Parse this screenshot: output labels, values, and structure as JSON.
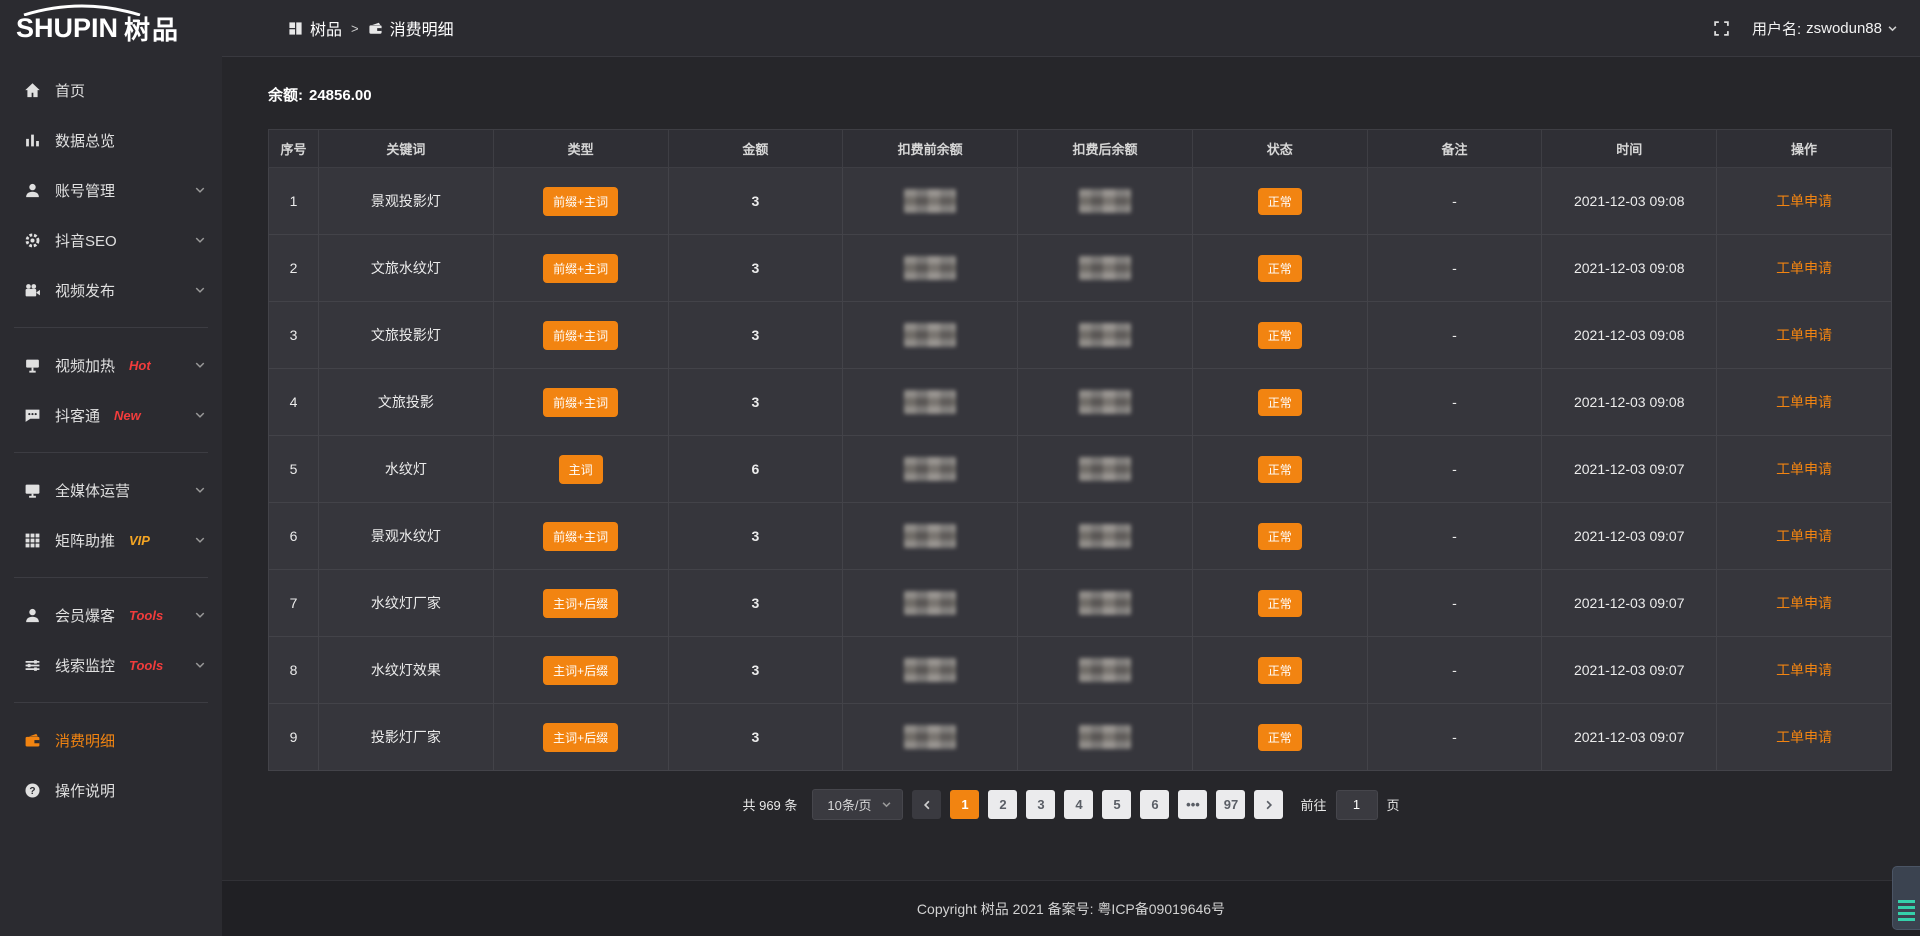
{
  "logo": {
    "text_en": "SHUPIN",
    "text_cn": "树品"
  },
  "header": {
    "breadcrumb": [
      {
        "label": "树品"
      },
      {
        "label": "消费明细"
      }
    ],
    "breadcrumb_separator": ">",
    "username_label": "用户名:",
    "username": "zswodun88"
  },
  "sidebar": {
    "items": [
      {
        "label": "首页"
      },
      {
        "label": "数据总览"
      },
      {
        "label": "账号管理"
      },
      {
        "label": "抖音SEO"
      },
      {
        "label": "视频发布"
      },
      {
        "label": "视频加热",
        "badge": "Hot"
      },
      {
        "label": "抖客通",
        "badge": "New"
      },
      {
        "label": "全媒体运营"
      },
      {
        "label": "矩阵助推",
        "badge": "VIP"
      },
      {
        "label": "会员爆客",
        "badge": "Tools"
      },
      {
        "label": "线索监控",
        "badge": "Tools"
      },
      {
        "label": "消费明细"
      },
      {
        "label": "操作说明"
      }
    ]
  },
  "balance": {
    "label": "余额:",
    "value": "24856.00"
  },
  "table": {
    "headers": [
      "序号",
      "关键词",
      "类型",
      "金额",
      "扣费前余额",
      "扣费后余额",
      "状态",
      "备注",
      "时间",
      "操作"
    ],
    "rows": [
      {
        "no": "1",
        "keyword": "景观投影灯",
        "type": "前缀+主词",
        "amount": "3",
        "status": "正常",
        "remark": "-",
        "time": "2021-12-03 09:08",
        "action": "工单申请"
      },
      {
        "no": "2",
        "keyword": "文旅水纹灯",
        "type": "前缀+主词",
        "amount": "3",
        "status": "正常",
        "remark": "-",
        "time": "2021-12-03 09:08",
        "action": "工单申请"
      },
      {
        "no": "3",
        "keyword": "文旅投影灯",
        "type": "前缀+主词",
        "amount": "3",
        "status": "正常",
        "remark": "-",
        "time": "2021-12-03 09:08",
        "action": "工单申请"
      },
      {
        "no": "4",
        "keyword": "文旅投影",
        "type": "前缀+主词",
        "amount": "3",
        "status": "正常",
        "remark": "-",
        "time": "2021-12-03 09:08",
        "action": "工单申请"
      },
      {
        "no": "5",
        "keyword": "水纹灯",
        "type": "主词",
        "amount": "6",
        "status": "正常",
        "remark": "-",
        "time": "2021-12-03 09:07",
        "action": "工单申请"
      },
      {
        "no": "6",
        "keyword": "景观水纹灯",
        "type": "前缀+主词",
        "amount": "3",
        "status": "正常",
        "remark": "-",
        "time": "2021-12-03 09:07",
        "action": "工单申请"
      },
      {
        "no": "7",
        "keyword": "水纹灯厂家",
        "type": "主词+后缀",
        "amount": "3",
        "status": "正常",
        "remark": "-",
        "time": "2021-12-03 09:07",
        "action": "工单申请"
      },
      {
        "no": "8",
        "keyword": "水纹灯效果",
        "type": "主词+后缀",
        "amount": "3",
        "status": "正常",
        "remark": "-",
        "time": "2021-12-03 09:07",
        "action": "工单申请"
      },
      {
        "no": "9",
        "keyword": "投影灯厂家",
        "type": "主词+后缀",
        "amount": "3",
        "status": "正常",
        "remark": "-",
        "time": "2021-12-03 09:07",
        "action": "工单申请"
      }
    ]
  },
  "pagination": {
    "total": "共 969 条",
    "page_size": "10条/页",
    "pages": [
      "1",
      "2",
      "3",
      "4",
      "5",
      "6",
      "•••",
      "97"
    ],
    "goto_label": "前往",
    "goto_value": "1",
    "goto_suffix": "页"
  },
  "footer": {
    "copyright": "Copyright 树品 2021 备案号: 粤ICP备09019646号"
  },
  "icons": {
    "help_glyph": "?"
  },
  "colors": {
    "accent": "#f28411",
    "hot_badge": "#f23c3c",
    "vip_badge": "#f5a623"
  }
}
